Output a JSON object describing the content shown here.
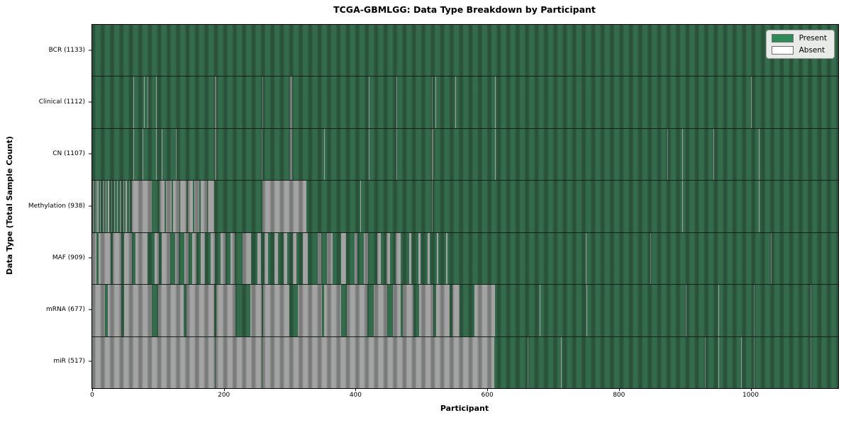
{
  "chart_data": {
    "type": "heatmap",
    "title": "TCGA-GBMLGG: Data Type Breakdown by Participant",
    "xlabel": "Participant",
    "ylabel": "Data Type (Total Sample Count)",
    "x_range": [
      0,
      1133
    ],
    "x_ticks": [
      0,
      200,
      400,
      600,
      800,
      1000
    ],
    "grid": false,
    "legend_position": "upper right",
    "legend": [
      {
        "label": "Present",
        "color": "#2e8b57"
      },
      {
        "label": "Absent",
        "color": "#ffffff"
      }
    ],
    "colors": {
      "present_fill": "#2e8b57",
      "absent_fill": "#ffffff",
      "absent_rendered": "#ababab",
      "present_rendered": "#36704f"
    },
    "rows": [
      {
        "label": "BCR (1133)",
        "name": "BCR",
        "total": 1133,
        "absent_runs": []
      },
      {
        "label": "Clinical (1112)",
        "name": "Clinical",
        "total": 1112,
        "absent_runs": [
          [
            62,
            63
          ],
          [
            79,
            80
          ],
          [
            84,
            85
          ],
          [
            97,
            98
          ],
          [
            186,
            189
          ],
          [
            259,
            260
          ],
          [
            301,
            304
          ],
          [
            420,
            421
          ],
          [
            462,
            463
          ],
          [
            516,
            517
          ],
          [
            521,
            522
          ],
          [
            551,
            552
          ],
          [
            612,
            613
          ],
          [
            1001,
            1002
          ]
        ]
      },
      {
        "label": "CN (1107)",
        "name": "CN",
        "total": 1107,
        "absent_runs": [
          [
            63,
            64
          ],
          [
            77,
            78
          ],
          [
            97,
            98
          ],
          [
            106,
            107
          ],
          [
            127,
            128
          ],
          [
            186,
            189
          ],
          [
            257,
            258
          ],
          [
            301,
            304
          ],
          [
            352,
            353
          ],
          [
            420,
            421
          ],
          [
            462,
            463
          ],
          [
            516,
            518
          ],
          [
            612,
            613
          ],
          [
            873,
            874
          ],
          [
            896,
            897
          ],
          [
            943,
            944
          ],
          [
            1012,
            1013
          ]
        ]
      },
      {
        "label": "Methylation (938)",
        "name": "Methylation",
        "total": 938,
        "absent_runs": [
          [
            1,
            3
          ],
          [
            5,
            6
          ],
          [
            8,
            10
          ],
          [
            12,
            13
          ],
          [
            16,
            18
          ],
          [
            20,
            21
          ],
          [
            24,
            26
          ],
          [
            29,
            30
          ],
          [
            33,
            35
          ],
          [
            38,
            39
          ],
          [
            42,
            44
          ],
          [
            47,
            48
          ],
          [
            51,
            53
          ],
          [
            56,
            57
          ],
          [
            60,
            90
          ],
          [
            102,
            110
          ],
          [
            112,
            121
          ],
          [
            123,
            132
          ],
          [
            134,
            143
          ],
          [
            145,
            153
          ],
          [
            155,
            163
          ],
          [
            165,
            174
          ],
          [
            176,
            185
          ],
          [
            258,
            325
          ],
          [
            407,
            408
          ],
          [
            516,
            517
          ],
          [
            896,
            897
          ],
          [
            1012,
            1013
          ]
        ]
      },
      {
        "label": "MAF (909)",
        "name": "MAF",
        "total": 909,
        "absent_runs": [
          [
            0,
            7
          ],
          [
            10,
            28
          ],
          [
            31,
            44
          ],
          [
            48,
            60
          ],
          [
            66,
            84
          ],
          [
            95,
            101
          ],
          [
            106,
            118
          ],
          [
            126,
            131
          ],
          [
            140,
            146
          ],
          [
            152,
            158
          ],
          [
            165,
            171
          ],
          [
            180,
            186
          ],
          [
            195,
            202
          ],
          [
            210,
            216
          ],
          [
            228,
            241
          ],
          [
            251,
            256
          ],
          [
            262,
            267
          ],
          [
            277,
            282
          ],
          [
            291,
            296
          ],
          [
            305,
            310
          ],
          [
            320,
            327
          ],
          [
            343,
            348
          ],
          [
            357,
            365
          ],
          [
            378,
            386
          ],
          [
            398,
            403
          ],
          [
            412,
            419
          ],
          [
            433,
            438
          ],
          [
            447,
            452
          ],
          [
            461,
            468
          ],
          [
            481,
            485
          ],
          [
            495,
            499
          ],
          [
            509,
            513
          ],
          [
            523,
            526
          ],
          [
            537,
            540
          ],
          [
            750,
            751
          ],
          [
            848,
            849
          ],
          [
            1031,
            1032
          ]
        ]
      },
      {
        "label": "mRNA (677)",
        "name": "mRNA",
        "total": 677,
        "absent_runs": [
          [
            0,
            19
          ],
          [
            24,
            44
          ],
          [
            48,
            90
          ],
          [
            100,
            139
          ],
          [
            143,
            185
          ],
          [
            189,
            218
          ],
          [
            240,
            257
          ],
          [
            260,
            299
          ],
          [
            312,
            349
          ],
          [
            352,
            378
          ],
          [
            387,
            418
          ],
          [
            428,
            448
          ],
          [
            457,
            468
          ],
          [
            472,
            488
          ],
          [
            497,
            518
          ],
          [
            522,
            543
          ],
          [
            547,
            558
          ],
          [
            580,
            612
          ],
          [
            680,
            681
          ],
          [
            751,
            752
          ],
          [
            901,
            902
          ],
          [
            951,
            952
          ],
          [
            1005,
            1006
          ],
          [
            1091,
            1092
          ]
        ]
      },
      {
        "label": "miR (517)",
        "name": "miR",
        "total": 517,
        "absent_runs": [
          [
            0,
            186
          ],
          [
            187,
            257
          ],
          [
            258,
            611
          ],
          [
            661,
            662
          ],
          [
            712,
            713
          ],
          [
            930,
            931
          ],
          [
            951,
            952
          ],
          [
            985,
            986
          ],
          [
            1005,
            1006
          ],
          [
            1091,
            1092
          ]
        ]
      }
    ]
  }
}
